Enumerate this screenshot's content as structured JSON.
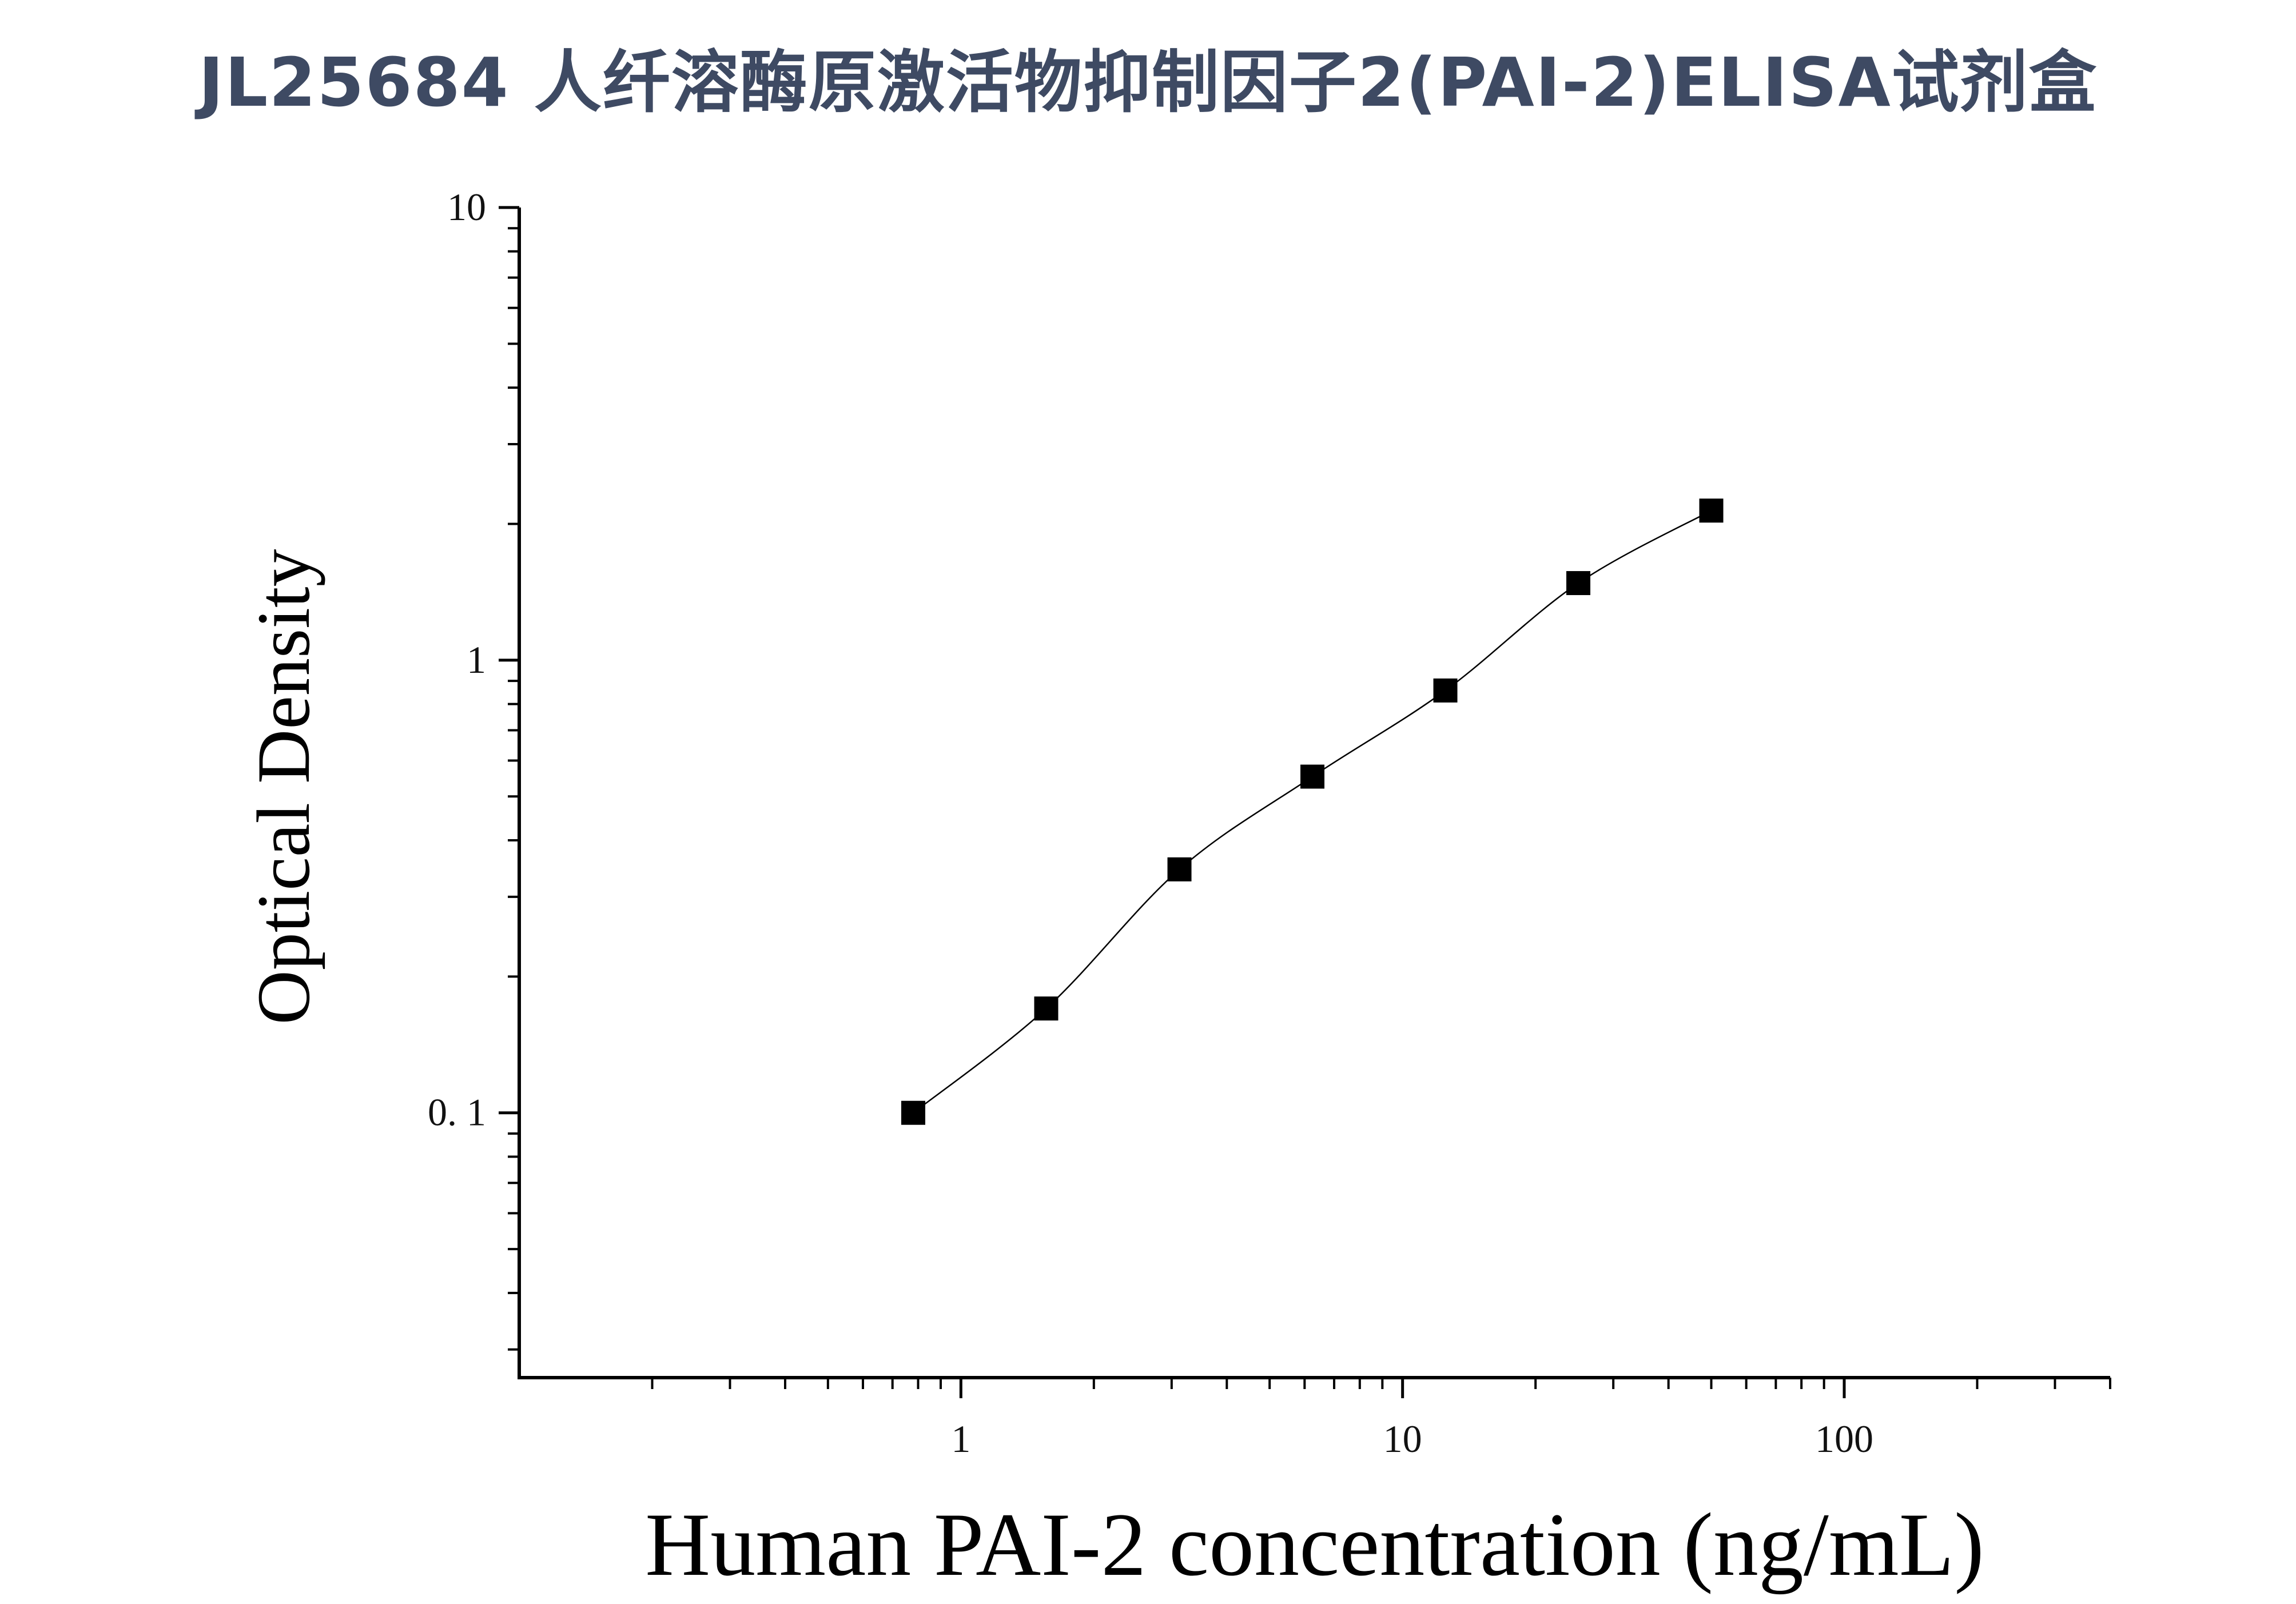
{
  "page_title": "JL25684 人纤溶酶原激活物抑制因子2(PAI-2)ELISA试剂盒",
  "chart_data": {
    "type": "scatter",
    "title": "",
    "xlabel": "Human PAI-2 concentration (ng/mL)",
    "ylabel": "Optical Density",
    "x_scale": "log",
    "y_scale": "log",
    "xlim": [
      0.1,
      400
    ],
    "ylim": [
      0.026,
      10
    ],
    "x_ticks": [
      {
        "value": 1,
        "label": "1"
      },
      {
        "value": 10,
        "label": "10"
      },
      {
        "value": 100,
        "label": "100"
      }
    ],
    "y_ticks": [
      {
        "value": 0.1,
        "label": "0. 1"
      },
      {
        "value": 1,
        "label": "1"
      },
      {
        "value": 10,
        "label": "10"
      }
    ],
    "grid": false,
    "legend": "none",
    "marker": "square",
    "marker_color": "#000000",
    "fit_curve": true,
    "series": [
      {
        "x": [
          0.78,
          1.56,
          3.125,
          6.25,
          12.5,
          25,
          50
        ],
        "y": [
          0.1,
          0.17,
          0.345,
          0.553,
          0.857,
          1.48,
          2.14
        ]
      }
    ]
  }
}
